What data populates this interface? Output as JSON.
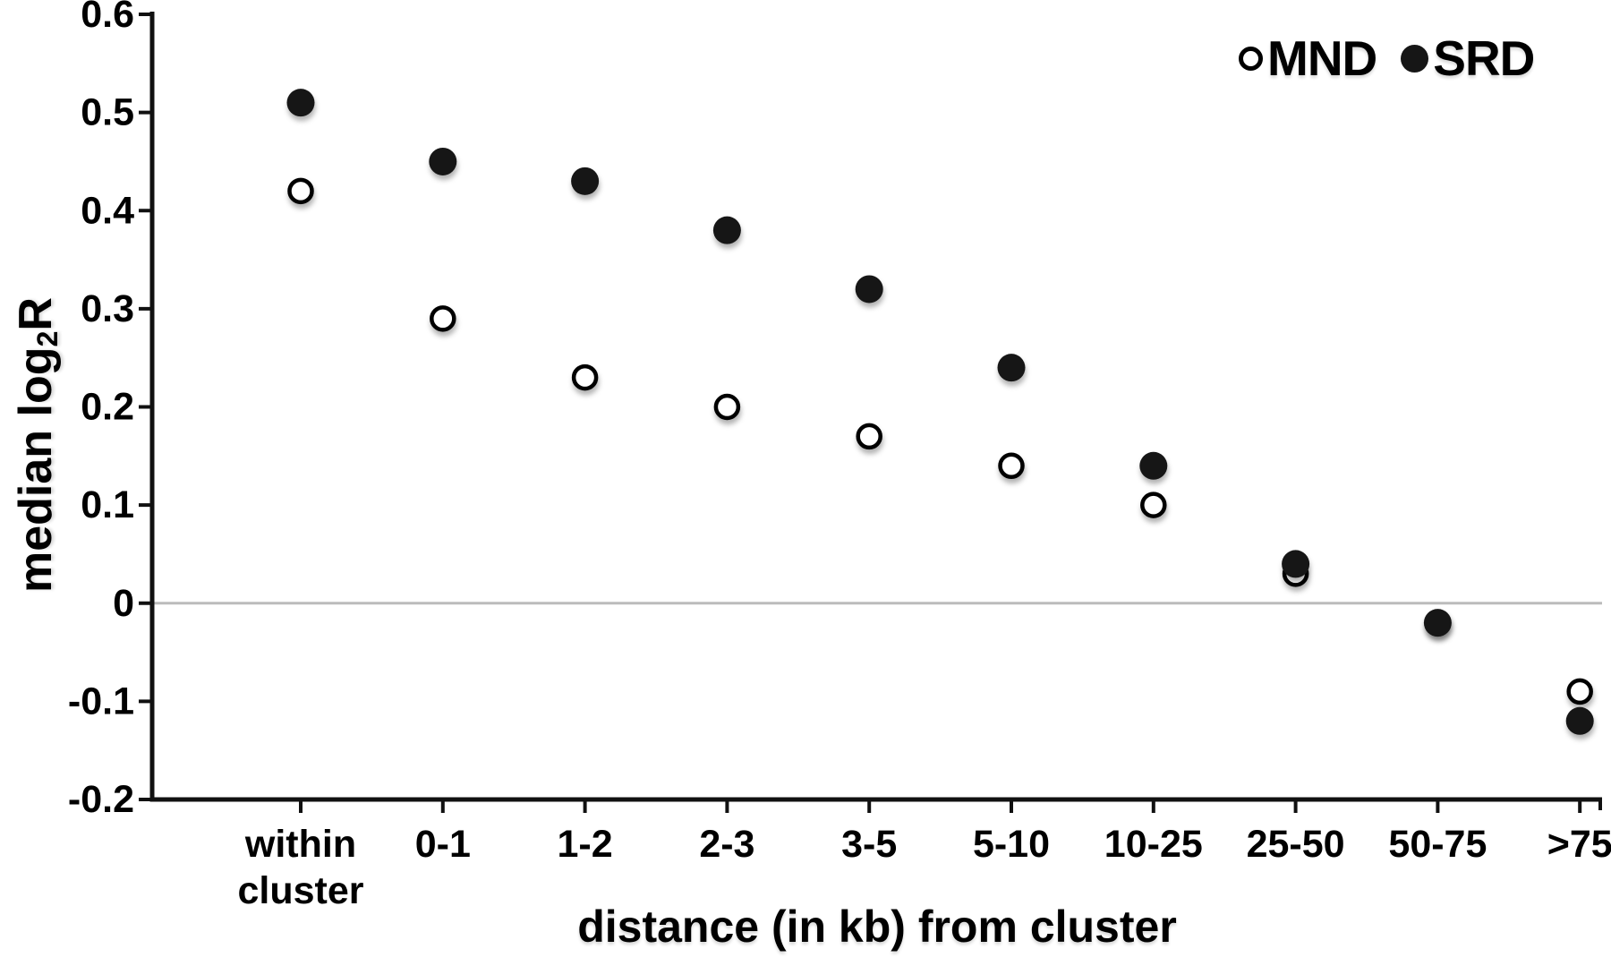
{
  "figure": {
    "background": "#ffffff",
    "text_color": "#000000",
    "zero_line_color": "#bbbbbb",
    "axis_color": "#111111"
  },
  "chart_data": {
    "type": "scatter",
    "title": "",
    "xlabel": "distance (in kb) from cluster",
    "ylabel": "median log2R",
    "ylabel_parts": {
      "prefix": "median log",
      "sub": "2",
      "suffix": "R"
    },
    "categories": [
      "within cluster",
      "0-1",
      "1-2",
      "2-3",
      "3-5",
      "5-10",
      "10-25",
      "25-50",
      "50-75",
      ">75"
    ],
    "series": [
      {
        "name": "MND",
        "marker": "open-circle",
        "fill": "#ffffff",
        "stroke": "#000000",
        "values": [
          0.42,
          0.29,
          0.23,
          0.2,
          0.17,
          0.14,
          0.1,
          0.03,
          -0.02,
          -0.09
        ]
      },
      {
        "name": "SRD",
        "marker": "filled-circle",
        "fill": "#161616",
        "stroke": "#161616",
        "values": [
          0.51,
          0.45,
          0.43,
          0.38,
          0.32,
          0.24,
          0.14,
          0.04,
          -0.02,
          -0.12
        ]
      }
    ],
    "ylim": [
      -0.2,
      0.6
    ],
    "y_ticks": [
      0.6,
      0.5,
      0.4,
      0.3,
      0.2,
      0.1,
      0,
      -0.1,
      -0.2
    ],
    "y_tick_labels": [
      "0.6",
      "0.5",
      "0.4",
      "0.3",
      "0.2",
      "0.1",
      "0",
      "-0.1",
      "-0.2"
    ],
    "grid": false,
    "zero_line": true,
    "legend_position": "top-right"
  }
}
